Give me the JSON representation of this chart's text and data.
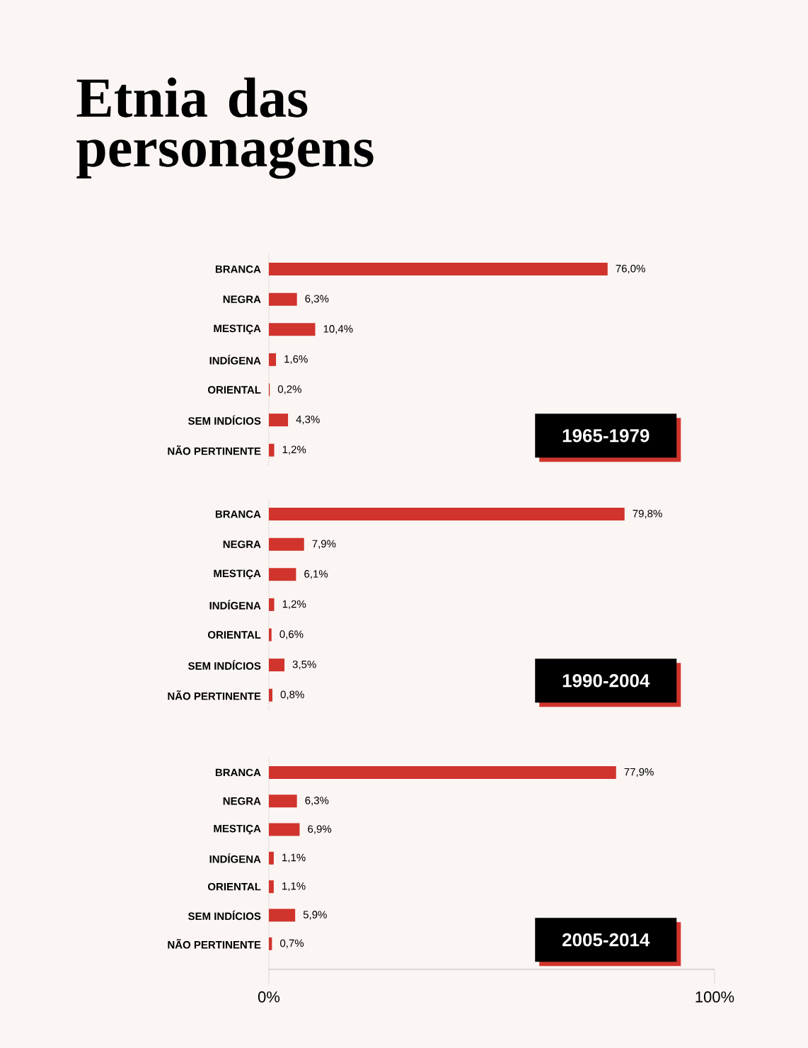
{
  "chart_data": [
    {
      "type": "bar",
      "orientation": "horizontal",
      "title": "Etnia das personagens",
      "subtitle": "1965-1979",
      "categories": [
        "BRANCA",
        "NEGRA",
        "MESTIÇA",
        "INDÍGENA",
        "ORIENTAL",
        "SEM INDÍCIOS",
        "NÃO PERTINENTE"
      ],
      "values": [
        76.0,
        6.3,
        10.4,
        1.6,
        0.2,
        4.3,
        1.2
      ],
      "value_labels": [
        "76,0%",
        "6,3%",
        "10,4%",
        "1,6%",
        "0,2%",
        "4,3%",
        "1,2%"
      ],
      "color": "#d0342c",
      "xlim": [
        0,
        100
      ],
      "tick_labels": "y"
    },
    {
      "type": "bar",
      "orientation": "horizontal",
      "subtitle": "1990-2004",
      "categories": [
        "BRANCA",
        "NEGRA",
        "MESTIÇA",
        "INDÍGENA",
        "ORIENTAL",
        "SEM INDÍCIOS",
        "NÃO PERTINENTE"
      ],
      "values": [
        79.8,
        7.9,
        6.1,
        1.2,
        0.6,
        3.5,
        0.8
      ],
      "value_labels": [
        "79,8%",
        "7,9%",
        "6,1%",
        "1,2%",
        "0,6%",
        "3,5%",
        "0,8%"
      ],
      "color": "#d0342c",
      "xlim": [
        0,
        100
      ],
      "tick_labels": "y"
    },
    {
      "type": "bar",
      "orientation": "horizontal",
      "subtitle": "2005-2014",
      "categories": [
        "BRANCA",
        "NEGRA",
        "MESTIÇA",
        "INDÍGENA",
        "ORIENTAL",
        "SEM INDÍCIOS",
        "NÃO PERTINENTE"
      ],
      "values": [
        77.9,
        6.3,
        6.9,
        1.1,
        1.1,
        5.9,
        0.7
      ],
      "value_labels": [
        "77,9%",
        "6,3%",
        "6,9%",
        "1,1%",
        "1,1%",
        "5,9%",
        "0,7%"
      ],
      "color": "#d0342c",
      "xlim": [
        0,
        100
      ],
      "xticks": [
        {
          "value": 0,
          "label": "0%"
        },
        {
          "value": 100,
          "label": "100%"
        }
      ]
    }
  ]
}
